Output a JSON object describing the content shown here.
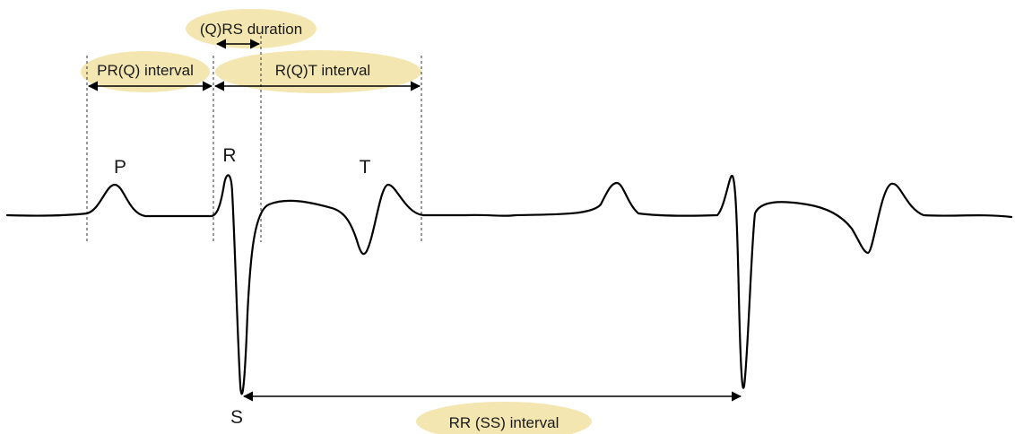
{
  "labels": {
    "qrs_duration": "(Q)RS duration",
    "prq_interval": "PR(Q) interval",
    "rqt_interval": "R(Q)T interval",
    "rr_interval": "RR (SS) interval",
    "p_wave": "P",
    "r_wave": "R",
    "t_wave": "T",
    "s_wave": "S"
  },
  "colors": {
    "highlight": "#f3e6b0",
    "trace": "#000000",
    "guide": "#333333"
  }
}
